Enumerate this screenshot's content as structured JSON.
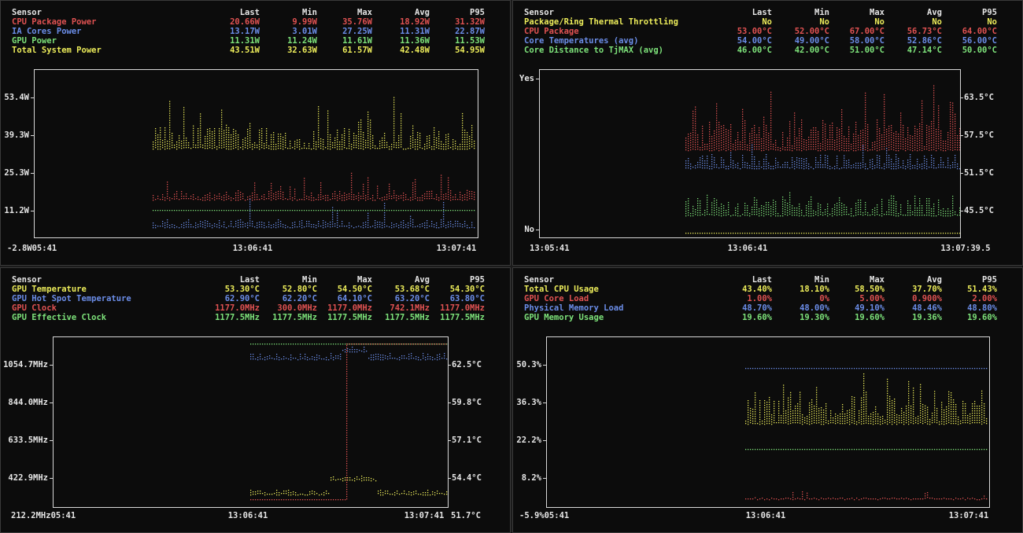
{
  "colors": {
    "white": "#e6e6e6",
    "red": "#e05252",
    "blue": "#6b8de8",
    "green": "#7de27a",
    "yellow": "#ecec5a"
  },
  "panels": [
    {
      "header": {
        "sensor": "Sensor",
        "last": "Last",
        "min": "Min",
        "max": "Max",
        "avg": "Avg",
        "p95": "P95"
      },
      "rows": [
        {
          "name": "CPU Package Power",
          "color": "red",
          "last": "20.66W",
          "min": "9.99W",
          "max": "35.76W",
          "avg": "18.92W",
          "p95": "31.32W"
        },
        {
          "name": "IA Cores Power",
          "color": "blue",
          "last": "13.17W",
          "min": "3.01W",
          "max": "27.25W",
          "avg": "11.31W",
          "p95": "22.87W"
        },
        {
          "name": "GPU Power",
          "color": "green",
          "last": "11.31W",
          "min": "11.24W",
          "max": "11.61W",
          "avg": "11.36W",
          "p95": "11.53W"
        },
        {
          "name": "Total System Power",
          "color": "yellow",
          "last": "43.51W",
          "min": "32.63W",
          "max": "61.57W",
          "avg": "42.48W",
          "p95": "54.95W"
        }
      ],
      "left_ticks": [
        "53.4W",
        "39.3W",
        "25.3W",
        "11.2W",
        "-2.8W"
      ],
      "right_ticks": [],
      "x_ticks": [
        "05:41",
        "13:06:41",
        "13:07:41"
      ]
    },
    {
      "header": {
        "sensor": "Sensor",
        "last": "Last",
        "min": "Min",
        "max": "Max",
        "avg": "Avg",
        "p95": "P95"
      },
      "rows": [
        {
          "name": "Package/Ring Thermal Throttling",
          "color": "yellow",
          "last": "No",
          "min": "No",
          "max": "No",
          "avg": "No",
          "p95": "No"
        },
        {
          "name": "CPU Package",
          "color": "red",
          "last": "53.00°C",
          "min": "52.00°C",
          "max": "67.00°C",
          "avg": "56.73°C",
          "p95": "64.00°C"
        },
        {
          "name": "Core Temperatures (avg)",
          "color": "blue",
          "last": "54.00°C",
          "min": "49.00°C",
          "max": "58.00°C",
          "avg": "52.86°C",
          "p95": "56.00°C"
        },
        {
          "name": "Core Distance to TjMAX (avg)",
          "color": "green",
          "last": "46.00°C",
          "min": "42.00°C",
          "max": "51.00°C",
          "avg": "47.14°C",
          "p95": "50.00°C"
        }
      ],
      "left_ticks": [
        "Yes",
        "No"
      ],
      "right_ticks": [
        "63.5°C",
        "57.5°C",
        "51.5°C",
        "45.5°C"
      ],
      "x_ticks": [
        "13:05:41",
        "13:06:41",
        "13:07:39.5"
      ]
    },
    {
      "header": {
        "sensor": "Sensor",
        "last": "Last",
        "min": "Min",
        "max": "Max",
        "avg": "Avg",
        "p95": "P95"
      },
      "rows": [
        {
          "name": "GPU Temperature",
          "color": "yellow",
          "last": "53.30°C",
          "min": "52.80°C",
          "max": "54.50°C",
          "avg": "53.68°C",
          "p95": "54.30°C"
        },
        {
          "name": "GPU Hot Spot Temperature",
          "color": "blue",
          "last": "62.90°C",
          "min": "62.20°C",
          "max": "64.10°C",
          "avg": "63.20°C",
          "p95": "63.80°C"
        },
        {
          "name": "GPU Clock",
          "color": "red",
          "last": "1177.0MHz",
          "min": "300.0MHz",
          "max": "1177.0MHz",
          "avg": "742.1MHz",
          "p95": "1177.0MHz"
        },
        {
          "name": "GPU Effective Clock",
          "color": "green",
          "last": "1177.5MHz",
          "min": "1177.5MHz",
          "max": "1177.5MHz",
          "avg": "1177.5MHz",
          "p95": "1177.5MHz"
        }
      ],
      "left_ticks": [
        "1054.7MHz",
        "844.0MHz",
        "633.5MHz",
        "422.9MHz",
        "212.2MHz"
      ],
      "right_ticks": [
        "62.5°C",
        "59.8°C",
        "57.1°C",
        "54.4°C",
        "51.7°C"
      ],
      "x_ticks": [
        "05:41",
        "13:06:41",
        "13:07:41"
      ]
    },
    {
      "header": {
        "sensor": "Sensor",
        "last": "Last",
        "min": "Min",
        "max": "Max",
        "avg": "Avg",
        "p95": "P95"
      },
      "rows": [
        {
          "name": "Total CPU Usage",
          "color": "yellow",
          "last": "43.40%",
          "min": "18.10%",
          "max": "58.50%",
          "avg": "37.70%",
          "p95": "51.43%"
        },
        {
          "name": "GPU Core Load",
          "color": "red",
          "last": "1.00%",
          "min": "0%",
          "max": "5.00%",
          "avg": "0.900%",
          "p95": "2.00%"
        },
        {
          "name": "Physical Memory Load",
          "color": "blue",
          "last": "48.70%",
          "min": "48.00%",
          "max": "49.10%",
          "avg": "48.46%",
          "p95": "48.80%"
        },
        {
          "name": "GPU Memory Usage",
          "color": "green",
          "last": "19.60%",
          "min": "19.30%",
          "max": "19.60%",
          "avg": "19.36%",
          "p95": "19.60%"
        }
      ],
      "left_ticks": [
        "50.3%",
        "36.3%",
        "22.2%",
        "8.2%",
        "-5.9%"
      ],
      "right_ticks": [],
      "x_ticks": [
        "05:41",
        "13:06:41",
        "13:07:41"
      ]
    }
  ]
}
